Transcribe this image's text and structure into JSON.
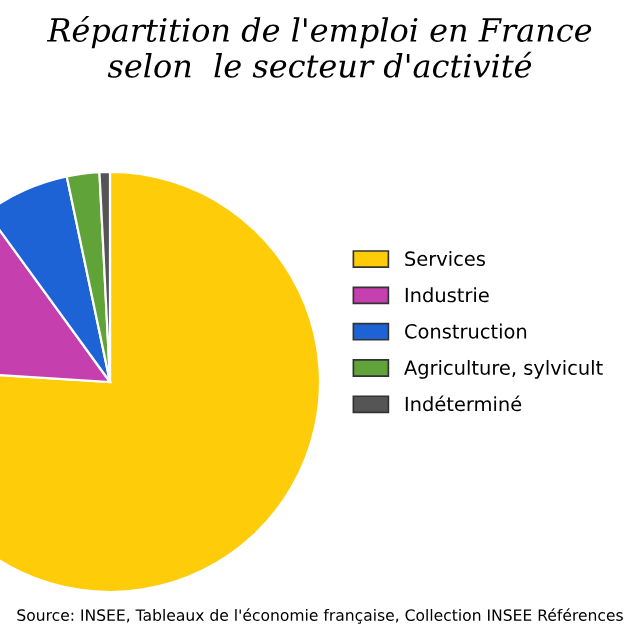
{
  "chart_data": {
    "type": "pie",
    "title": "Répartition de l'emploi en France\nselon  le secteur d'activité",
    "categories": [
      "Services",
      "Industrie",
      "Construction",
      "Agriculture, sylvicult",
      "Indéterminé"
    ],
    "values": [
      76,
      14,
      6.7,
      2.5,
      0.8
    ],
    "colors": [
      "#ffcc0a",
      "#c63fae",
      "#1e63d6",
      "#5fa339",
      "#555555"
    ],
    "legend": "right",
    "annotations": [
      "Source: INSEE, Tableaux de l'économie française, Collection INSEE Références"
    ]
  }
}
